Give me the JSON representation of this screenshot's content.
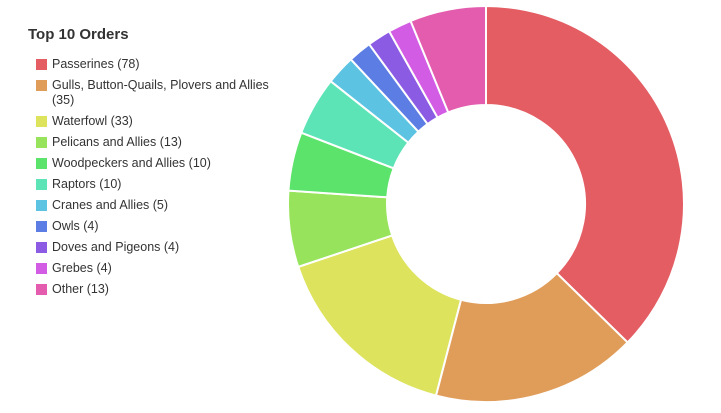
{
  "chart_data": {
    "type": "pie",
    "title": "Top 10 Orders",
    "donut": true,
    "legend_position": "left",
    "categories": [
      "Passerines (78)",
      "Gulls, Button-Quails, Plovers and Allies (35)",
      "Waterfowl (33)",
      "Pelicans and Allies (13)",
      "Woodpeckers and Allies (10)",
      "Raptors (10)",
      "Cranes and Allies (5)",
      "Owls (4)",
      "Doves and Pigeons (4)",
      "Grebes (4)",
      "Other (13)"
    ],
    "values": [
      78,
      35,
      33,
      13,
      10,
      10,
      5,
      4,
      4,
      4,
      13
    ],
    "colors": [
      "#e35d63",
      "#e09d5a",
      "#dde35c",
      "#97e35c",
      "#5ce36b",
      "#5ce3b6",
      "#5cc3e3",
      "#5c7de3",
      "#8b5ce3",
      "#d25ce3",
      "#e35cae"
    ]
  }
}
